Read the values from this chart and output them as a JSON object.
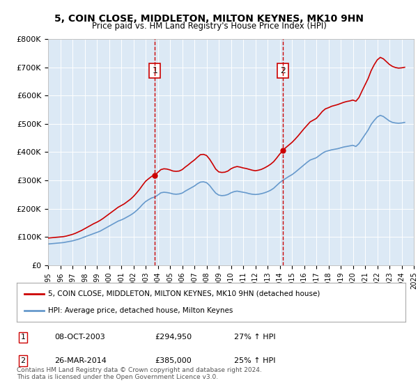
{
  "title": "5, COIN CLOSE, MIDDLETON, MILTON KEYNES, MK10 9HN",
  "subtitle": "Price paid vs. HM Land Registry's House Price Index (HPI)",
  "legend_line1": "5, COIN CLOSE, MIDDLETON, MILTON KEYNES, MK10 9HN (detached house)",
  "legend_line2": "HPI: Average price, detached house, Milton Keynes",
  "footnote": "Contains HM Land Registry data © Crown copyright and database right 2024.\nThis data is licensed under the Open Government Licence v3.0.",
  "sale1_date": "08-OCT-2003",
  "sale1_price": 294950,
  "sale1_pct": "27% ↑ HPI",
  "sale2_date": "26-MAR-2014",
  "sale2_price": 385000,
  "sale2_pct": "25% ↑ HPI",
  "ylim": [
    0,
    800000
  ],
  "yticks": [
    0,
    100000,
    200000,
    300000,
    400000,
    500000,
    600000,
    700000,
    800000
  ],
  "background_color": "#dce9f5",
  "plot_bg": "#dce9f5",
  "red_color": "#cc0000",
  "blue_color": "#6699cc",
  "vline_color": "#cc0000",
  "marker_box_color": "#cc0000",
  "hpi_x": [
    1995.0,
    1995.25,
    1995.5,
    1995.75,
    1996.0,
    1996.25,
    1996.5,
    1996.75,
    1997.0,
    1997.25,
    1997.5,
    1997.75,
    1998.0,
    1998.25,
    1998.5,
    1998.75,
    1999.0,
    1999.25,
    1999.5,
    1999.75,
    2000.0,
    2000.25,
    2000.5,
    2000.75,
    2001.0,
    2001.25,
    2001.5,
    2001.75,
    2002.0,
    2002.25,
    2002.5,
    2002.75,
    2003.0,
    2003.25,
    2003.5,
    2003.75,
    2004.0,
    2004.25,
    2004.5,
    2004.75,
    2005.0,
    2005.25,
    2005.5,
    2005.75,
    2006.0,
    2006.25,
    2006.5,
    2006.75,
    2007.0,
    2007.25,
    2007.5,
    2007.75,
    2008.0,
    2008.25,
    2008.5,
    2008.75,
    2009.0,
    2009.25,
    2009.5,
    2009.75,
    2010.0,
    2010.25,
    2010.5,
    2010.75,
    2011.0,
    2011.25,
    2011.5,
    2011.75,
    2012.0,
    2012.25,
    2012.5,
    2012.75,
    2013.0,
    2013.25,
    2013.5,
    2013.75,
    2014.0,
    2014.25,
    2014.5,
    2014.75,
    2015.0,
    2015.25,
    2015.5,
    2015.75,
    2016.0,
    2016.25,
    2016.5,
    2016.75,
    2017.0,
    2017.25,
    2017.5,
    2017.75,
    2018.0,
    2018.25,
    2018.5,
    2018.75,
    2019.0,
    2019.25,
    2019.5,
    2019.75,
    2020.0,
    2020.25,
    2020.5,
    2020.75,
    2021.0,
    2021.25,
    2021.5,
    2021.75,
    2022.0,
    2022.25,
    2022.5,
    2022.75,
    2023.0,
    2023.25,
    2023.5,
    2023.75,
    2024.0,
    2024.25
  ],
  "hpi_y": [
    75000,
    76000,
    77000,
    78000,
    79000,
    80000,
    82000,
    84000,
    86000,
    89000,
    92000,
    96000,
    100000,
    104000,
    108000,
    112000,
    116000,
    120000,
    126000,
    132000,
    138000,
    144000,
    150000,
    156000,
    160000,
    165000,
    171000,
    177000,
    184000,
    193000,
    203000,
    215000,
    225000,
    232000,
    238000,
    241000,
    248000,
    256000,
    258000,
    257000,
    255000,
    252000,
    251000,
    252000,
    255000,
    262000,
    268000,
    274000,
    280000,
    288000,
    294000,
    295000,
    292000,
    282000,
    268000,
    255000,
    248000,
    246000,
    247000,
    250000,
    256000,
    260000,
    262000,
    260000,
    258000,
    256000,
    253000,
    251000,
    250000,
    251000,
    253000,
    256000,
    260000,
    265000,
    272000,
    282000,
    292000,
    300000,
    307000,
    314000,
    320000,
    328000,
    337000,
    346000,
    355000,
    364000,
    372000,
    376000,
    380000,
    388000,
    396000,
    402000,
    405000,
    408000,
    410000,
    412000,
    415000,
    418000,
    420000,
    422000,
    424000,
    420000,
    430000,
    446000,
    462000,
    478000,
    498000,
    512000,
    524000,
    530000,
    526000,
    518000,
    510000,
    505000,
    503000,
    502000,
    503000,
    505000
  ],
  "house_x": [
    1995.0,
    1995.25,
    1995.5,
    1995.75,
    1996.0,
    1996.25,
    1996.5,
    1996.75,
    1997.0,
    1997.25,
    1997.5,
    1997.75,
    1998.0,
    1998.25,
    1998.5,
    1998.75,
    1999.0,
    1999.25,
    1999.5,
    1999.75,
    2000.0,
    2000.25,
    2000.5,
    2000.75,
    2001.0,
    2001.25,
    2001.5,
    2001.75,
    2002.0,
    2002.25,
    2002.5,
    2002.75,
    2003.0,
    2003.25,
    2003.5,
    2003.75,
    2004.0,
    2004.25,
    2004.5,
    2004.75,
    2005.0,
    2005.25,
    2005.5,
    2005.75,
    2006.0,
    2006.25,
    2006.5,
    2006.75,
    2007.0,
    2007.25,
    2007.5,
    2007.75,
    2008.0,
    2008.25,
    2008.5,
    2008.75,
    2009.0,
    2009.25,
    2009.5,
    2009.75,
    2010.0,
    2010.25,
    2010.5,
    2010.75,
    2011.0,
    2011.25,
    2011.5,
    2011.75,
    2012.0,
    2012.25,
    2012.5,
    2012.75,
    2013.0,
    2013.25,
    2013.5,
    2013.75,
    2014.0,
    2014.25,
    2014.5,
    2014.75,
    2015.0,
    2015.25,
    2015.5,
    2015.75,
    2016.0,
    2016.25,
    2016.5,
    2016.75,
    2017.0,
    2017.25,
    2017.5,
    2017.75,
    2018.0,
    2018.25,
    2018.5,
    2018.75,
    2019.0,
    2019.25,
    2019.5,
    2019.75,
    2020.0,
    2020.25,
    2020.5,
    2020.75,
    2021.0,
    2021.25,
    2021.5,
    2021.75,
    2022.0,
    2022.25,
    2022.5,
    2022.75,
    2023.0,
    2023.25,
    2023.5,
    2023.75,
    2024.0,
    2024.25
  ],
  "house_y": [
    96000,
    97000,
    98000,
    99000,
    100000,
    101000,
    103000,
    106000,
    109000,
    113000,
    118000,
    123000,
    129000,
    135000,
    141000,
    147000,
    152000,
    158000,
    165000,
    173000,
    181000,
    189000,
    197000,
    205000,
    211000,
    217000,
    225000,
    233000,
    243000,
    255000,
    268000,
    283000,
    297000,
    306000,
    314000,
    318000,
    328000,
    338000,
    341000,
    340000,
    337000,
    333000,
    332000,
    333000,
    338000,
    347000,
    355000,
    364000,
    372000,
    382000,
    391000,
    392000,
    388000,
    375000,
    358000,
    340000,
    330000,
    328000,
    329000,
    333000,
    341000,
    346000,
    349000,
    347000,
    344000,
    342000,
    339000,
    336000,
    334000,
    336000,
    339000,
    344000,
    350000,
    357000,
    366000,
    379000,
    393000,
    405000,
    416000,
    425000,
    434000,
    445000,
    457000,
    470000,
    483000,
    495000,
    507000,
    513000,
    519000,
    531000,
    544000,
    553000,
    557000,
    562000,
    565000,
    568000,
    572000,
    576000,
    579000,
    581000,
    584000,
    580000,
    593000,
    616000,
    638000,
    660000,
    688000,
    709000,
    726000,
    735000,
    730000,
    720000,
    710000,
    703000,
    699000,
    697000,
    698000,
    700000
  ],
  "sale1_x": 2003.75,
  "sale2_x": 2014.25,
  "xlim": [
    1995.0,
    2024.5
  ],
  "xtick_years": [
    1995,
    1996,
    1997,
    1998,
    1999,
    2000,
    2001,
    2002,
    2003,
    2004,
    2005,
    2006,
    2007,
    2008,
    2009,
    2010,
    2011,
    2012,
    2013,
    2014,
    2015,
    2016,
    2017,
    2018,
    2019,
    2020,
    2021,
    2022,
    2023,
    2024,
    2025
  ]
}
